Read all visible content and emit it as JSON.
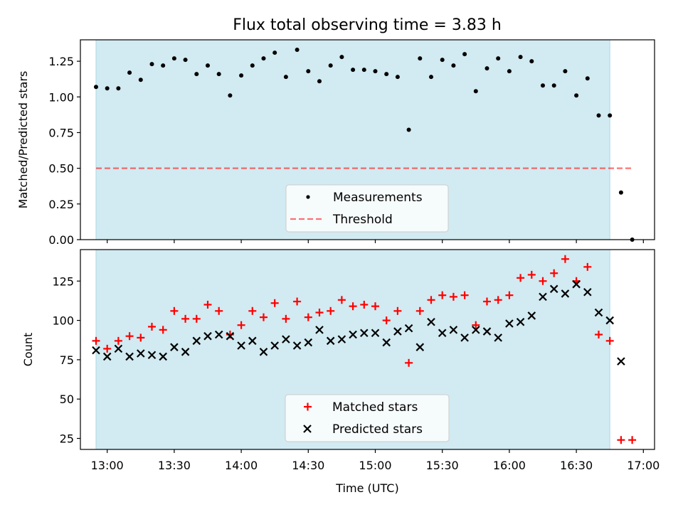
{
  "title": "Flux total observing time = 3.83 h",
  "colors": {
    "observing_band": "#add8e6",
    "measurement": "#000000",
    "threshold": "#ff0000",
    "matched": "#ff0000",
    "predicted": "#000000"
  },
  "chart_data": [
    {
      "type": "scatter",
      "panel": "top",
      "title": "Flux total observing time = 3.83 h",
      "xlabel": "",
      "ylabel": "Matched/Predicted stars",
      "xlim": [
        "12:48",
        "17:05"
      ],
      "ylim": [
        0,
        1.4
      ],
      "yticks": [
        "0.00",
        "0.25",
        "0.50",
        "0.75",
        "1.00",
        "1.25"
      ],
      "xticks": [
        "13:00",
        "13:30",
        "14:00",
        "14:30",
        "15:00",
        "15:30",
        "16:00",
        "16:30",
        "17:00"
      ],
      "shaded_span": [
        "12:55",
        "16:45"
      ],
      "legend": {
        "position": "lower-center",
        "entries": [
          "Measurements",
          "Threshold"
        ]
      },
      "threshold": {
        "name": "Threshold",
        "y": 0.5,
        "x_range": [
          "12:55",
          "16:55"
        ]
      },
      "series": [
        {
          "name": "Measurements",
          "points": [
            [
              "12:55",
              1.07
            ],
            [
              "13:00",
              1.06
            ],
            [
              "13:05",
              1.06
            ],
            [
              "13:10",
              1.17
            ],
            [
              "13:15",
              1.12
            ],
            [
              "13:20",
              1.23
            ],
            [
              "13:25",
              1.22
            ],
            [
              "13:30",
              1.27
            ],
            [
              "13:35",
              1.26
            ],
            [
              "13:40",
              1.16
            ],
            [
              "13:45",
              1.22
            ],
            [
              "13:50",
              1.16
            ],
            [
              "13:55",
              1.01
            ],
            [
              "14:00",
              1.15
            ],
            [
              "14:05",
              1.22
            ],
            [
              "14:10",
              1.27
            ],
            [
              "14:15",
              1.31
            ],
            [
              "14:20",
              1.14
            ],
            [
              "14:25",
              1.33
            ],
            [
              "14:30",
              1.18
            ],
            [
              "14:35",
              1.11
            ],
            [
              "14:40",
              1.22
            ],
            [
              "14:45",
              1.28
            ],
            [
              "14:50",
              1.19
            ],
            [
              "14:55",
              1.19
            ],
            [
              "15:00",
              1.18
            ],
            [
              "15:05",
              1.16
            ],
            [
              "15:10",
              1.14
            ],
            [
              "15:15",
              0.77
            ],
            [
              "15:20",
              1.27
            ],
            [
              "15:25",
              1.14
            ],
            [
              "15:30",
              1.26
            ],
            [
              "15:35",
              1.22
            ],
            [
              "15:40",
              1.3
            ],
            [
              "15:45",
              1.04
            ],
            [
              "15:50",
              1.2
            ],
            [
              "15:55",
              1.27
            ],
            [
              "16:00",
              1.18
            ],
            [
              "16:05",
              1.28
            ],
            [
              "16:10",
              1.25
            ],
            [
              "16:15",
              1.08
            ],
            [
              "16:20",
              1.08
            ],
            [
              "16:25",
              1.18
            ],
            [
              "16:30",
              1.01
            ],
            [
              "16:35",
              1.13
            ],
            [
              "16:40",
              0.87
            ],
            [
              "16:45",
              0.87
            ],
            [
              "16:50",
              0.33
            ],
            [
              "16:55",
              0.0
            ]
          ]
        }
      ]
    },
    {
      "type": "scatter",
      "panel": "bottom",
      "xlabel": "Time (UTC)",
      "ylabel": "Count",
      "xlim": [
        "12:48",
        "17:05"
      ],
      "ylim": [
        18,
        145
      ],
      "yticks": [
        "25",
        "50",
        "75",
        "100",
        "125"
      ],
      "xticks": [
        "13:00",
        "13:30",
        "14:00",
        "14:30",
        "15:00",
        "15:30",
        "16:00",
        "16:30",
        "17:00"
      ],
      "shaded_span": [
        "12:55",
        "16:45"
      ],
      "legend": {
        "position": "lower-center",
        "entries": [
          "Matched stars",
          "Predicted stars"
        ]
      },
      "series": [
        {
          "name": "Matched stars",
          "marker": "plus",
          "points": [
            [
              "12:55",
              87
            ],
            [
              "13:00",
              82
            ],
            [
              "13:05",
              87
            ],
            [
              "13:10",
              90
            ],
            [
              "13:15",
              89
            ],
            [
              "13:20",
              96
            ],
            [
              "13:25",
              94
            ],
            [
              "13:30",
              106
            ],
            [
              "13:35",
              101
            ],
            [
              "13:40",
              101
            ],
            [
              "13:45",
              110
            ],
            [
              "13:50",
              106
            ],
            [
              "13:55",
              91
            ],
            [
              "14:00",
              97
            ],
            [
              "14:05",
              106
            ],
            [
              "14:10",
              102
            ],
            [
              "14:15",
              111
            ],
            [
              "14:20",
              101
            ],
            [
              "14:25",
              112
            ],
            [
              "14:30",
              102
            ],
            [
              "14:35",
              105
            ],
            [
              "14:40",
              106
            ],
            [
              "14:45",
              113
            ],
            [
              "14:50",
              109
            ],
            [
              "14:55",
              110
            ],
            [
              "15:00",
              109
            ],
            [
              "15:05",
              100
            ],
            [
              "15:10",
              106
            ],
            [
              "15:15",
              73
            ],
            [
              "15:20",
              106
            ],
            [
              "15:25",
              113
            ],
            [
              "15:30",
              116
            ],
            [
              "15:35",
              115
            ],
            [
              "15:40",
              116
            ],
            [
              "15:45",
              97
            ],
            [
              "15:50",
              112
            ],
            [
              "15:55",
              113
            ],
            [
              "16:00",
              116
            ],
            [
              "16:05",
              127
            ],
            [
              "16:10",
              129
            ],
            [
              "16:15",
              125
            ],
            [
              "16:20",
              130
            ],
            [
              "16:25",
              139
            ],
            [
              "16:30",
              125
            ],
            [
              "16:35",
              134
            ],
            [
              "16:40",
              91
            ],
            [
              "16:45",
              87
            ],
            [
              "16:50",
              24
            ],
            [
              "16:55",
              24
            ]
          ]
        },
        {
          "name": "Predicted stars",
          "marker": "x",
          "points": [
            [
              "12:55",
              81
            ],
            [
              "13:00",
              77
            ],
            [
              "13:05",
              82
            ],
            [
              "13:10",
              77
            ],
            [
              "13:15",
              79
            ],
            [
              "13:20",
              78
            ],
            [
              "13:25",
              77
            ],
            [
              "13:30",
              83
            ],
            [
              "13:35",
              80
            ],
            [
              "13:40",
              87
            ],
            [
              "13:45",
              90
            ],
            [
              "13:50",
              91
            ],
            [
              "13:55",
              90
            ],
            [
              "14:00",
              84
            ],
            [
              "14:05",
              87
            ],
            [
              "14:10",
              80
            ],
            [
              "14:15",
              84
            ],
            [
              "14:20",
              88
            ],
            [
              "14:25",
              84
            ],
            [
              "14:30",
              86
            ],
            [
              "14:35",
              94
            ],
            [
              "14:40",
              87
            ],
            [
              "14:45",
              88
            ],
            [
              "14:50",
              91
            ],
            [
              "14:55",
              92
            ],
            [
              "15:00",
              92
            ],
            [
              "15:05",
              86
            ],
            [
              "15:10",
              93
            ],
            [
              "15:15",
              95
            ],
            [
              "15:20",
              83
            ],
            [
              "15:25",
              99
            ],
            [
              "15:30",
              92
            ],
            [
              "15:35",
              94
            ],
            [
              "15:40",
              89
            ],
            [
              "15:45",
              94
            ],
            [
              "15:50",
              93
            ],
            [
              "15:55",
              89
            ],
            [
              "16:00",
              98
            ],
            [
              "16:05",
              99
            ],
            [
              "16:10",
              103
            ],
            [
              "16:15",
              115
            ],
            [
              "16:20",
              120
            ],
            [
              "16:25",
              117
            ],
            [
              "16:30",
              123
            ],
            [
              "16:35",
              118
            ],
            [
              "16:40",
              105
            ],
            [
              "16:45",
              100
            ],
            [
              "16:50",
              74
            ]
          ]
        }
      ]
    }
  ]
}
